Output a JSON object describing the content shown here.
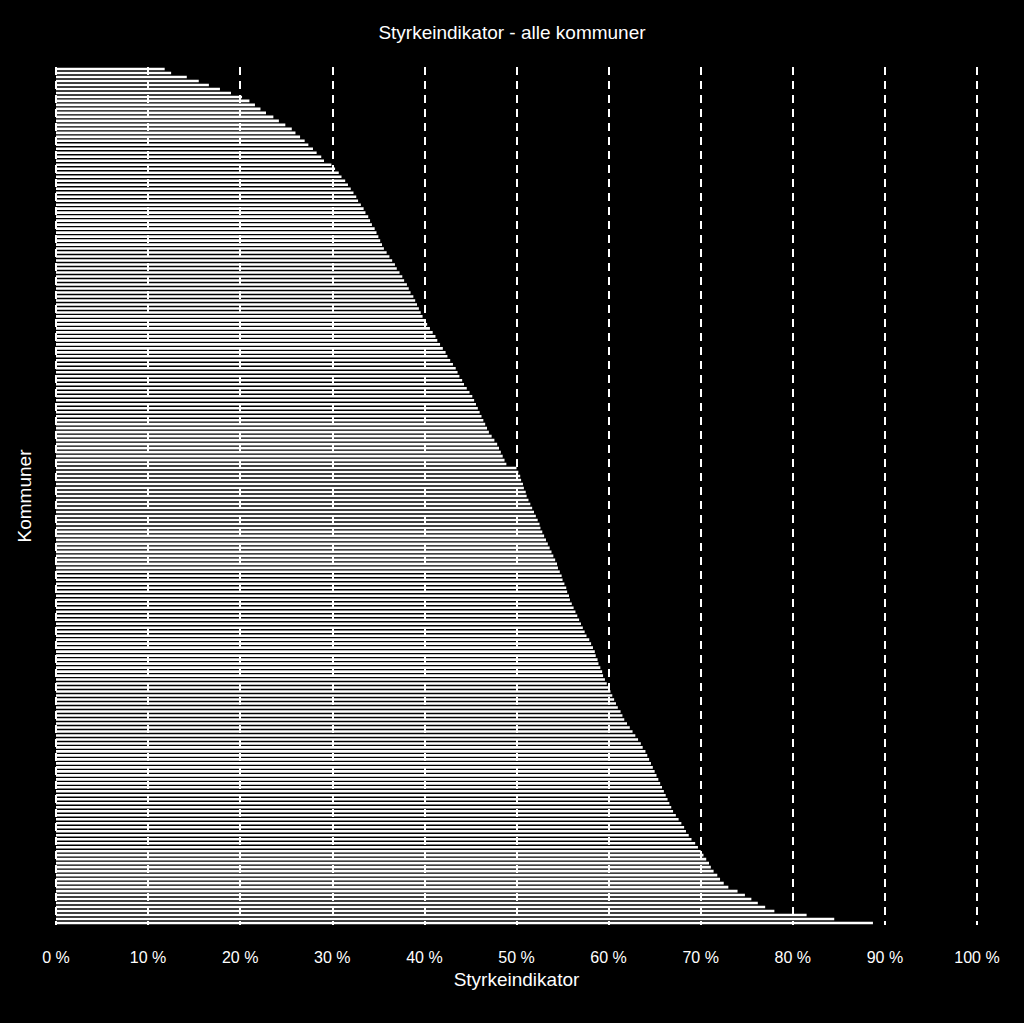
{
  "chart_data": {
    "type": "bar",
    "title": "Styrkeindikator - alle kommuner",
    "x_label": "Styrkeindikator",
    "y_label": "Kommuner",
    "orientation": "horizontal",
    "color": "#ffffff",
    "grid": true,
    "tick_labels": "x",
    "xlim": [
      0,
      100
    ],
    "xticks": [
      {
        "value": 0,
        "label": "0 %"
      },
      {
        "value": 10,
        "label": "10 %"
      },
      {
        "value": 20,
        "label": "20 %"
      },
      {
        "value": 30,
        "label": "30 %"
      },
      {
        "value": 40,
        "label": "40 %"
      },
      {
        "value": 50,
        "label": "50 %"
      },
      {
        "value": 60,
        "label": "60 %"
      },
      {
        "value": 70,
        "label": "70 %"
      },
      {
        "value": 80,
        "label": "80 %"
      },
      {
        "value": 90,
        "label": "90 %"
      },
      {
        "value": 100,
        "label": "100 %"
      }
    ],
    "categories": [
      null,
      null,
      null,
      null,
      null,
      null,
      null,
      null,
      null,
      null,
      null,
      null,
      null,
      null,
      null,
      null,
      null,
      null,
      null,
      null,
      null,
      null,
      null,
      null,
      null,
      null,
      null,
      null,
      null,
      null,
      null,
      null,
      null,
      null,
      null,
      null,
      null,
      null,
      null,
      null,
      null,
      null,
      null,
      null,
      null,
      null,
      null,
      null,
      null,
      null,
      null,
      null,
      null,
      null,
      null,
      null,
      null,
      null,
      null,
      null,
      null,
      null,
      null,
      null,
      null,
      null,
      null,
      null,
      null,
      null,
      null,
      null,
      null,
      null,
      null,
      null,
      null,
      null,
      null,
      null,
      null,
      null,
      null,
      null,
      null,
      null,
      null,
      null,
      null,
      null,
      null,
      null,
      null,
      null,
      null,
      null,
      null,
      null,
      null,
      null,
      null,
      null,
      null,
      null,
      null,
      null,
      null,
      null,
      null,
      null,
      null,
      null,
      null,
      null,
      null,
      null,
      null,
      null,
      null,
      null,
      null,
      null,
      null,
      null,
      null,
      null,
      null,
      null,
      null,
      null,
      null,
      null,
      null,
      null,
      null,
      null,
      null,
      null,
      null,
      null,
      null,
      null,
      null,
      null,
      null,
      null,
      null,
      null,
      null,
      null,
      null,
      null,
      null,
      null,
      null,
      null,
      null,
      null,
      null,
      null,
      null,
      null,
      null,
      null,
      null,
      null,
      null,
      null,
      null,
      null,
      null,
      null,
      null,
      null,
      null,
      null,
      null,
      null,
      null,
      null,
      null,
      null,
      null,
      null,
      null,
      null,
      null,
      null,
      null,
      null,
      null,
      null,
      null,
      null,
      null,
      null,
      null,
      null,
      null,
      null,
      null,
      null,
      null,
      null,
      null,
      null,
      null,
      null,
      null,
      null,
      null,
      null,
      null,
      null,
      null
    ],
    "values": [
      11.8,
      12.5,
      14.2,
      15.5,
      16.6,
      17.8,
      19.0,
      20.2,
      21.0,
      21.6,
      22.2,
      22.8,
      23.6,
      24.2,
      24.9,
      25.6,
      26.0,
      26.5,
      27.0,
      27.4,
      27.9,
      28.3,
      28.8,
      29.1,
      29.9,
      30.3,
      30.7,
      31.0,
      31.4,
      31.7,
      32.0,
      32.3,
      32.6,
      32.8,
      33.1,
      33.4,
      33.6,
      33.9,
      34.1,
      34.3,
      34.6,
      34.8,
      35.0,
      35.2,
      35.4,
      35.6,
      35.9,
      36.2,
      36.5,
      36.8,
      37.0,
      37.3,
      37.6,
      37.8,
      38.1,
      38.3,
      38.5,
      38.8,
      39.0,
      39.2,
      39.4,
      39.6,
      39.8,
      40.0,
      40.3,
      40.6,
      40.9,
      41.2,
      41.4,
      41.7,
      42.0,
      42.3,
      42.5,
      42.8,
      43.1,
      43.4,
      43.6,
      43.8,
      44.1,
      44.3,
      44.6,
      44.9,
      45.2,
      45.4,
      45.6,
      45.8,
      46.0,
      46.2,
      46.4,
      46.6,
      46.8,
      47.0,
      47.3,
      47.6,
      47.9,
      48.1,
      48.3,
      48.5,
      48.7,
      48.9,
      50.0,
      50.2,
      50.4,
      50.5,
      50.7,
      50.8,
      51.0,
      51.1,
      51.3,
      51.5,
      51.7,
      51.9,
      52.1,
      52.3,
      52.5,
      52.6,
      52.8,
      53.0,
      53.2,
      53.4,
      53.6,
      53.8,
      54.0,
      54.2,
      54.4,
      54.5,
      54.7,
      54.9,
      55.0,
      55.2,
      55.4,
      55.5,
      55.7,
      55.8,
      56.0,
      56.2,
      56.4,
      56.6,
      56.8,
      57.0,
      57.2,
      57.4,
      57.6,
      57.9,
      58.1,
      58.3,
      58.5,
      58.6,
      58.8,
      58.9,
      59.1,
      59.3,
      59.4,
      59.6,
      59.8,
      60.0,
      60.2,
      60.4,
      60.6,
      60.8,
      61.0,
      61.3,
      61.5,
      61.7,
      62.0,
      62.3,
      62.6,
      62.9,
      63.2,
      63.5,
      63.7,
      64.0,
      64.2,
      64.4,
      64.6,
      64.8,
      65.0,
      65.2,
      65.4,
      65.6,
      65.8,
      66.0,
      66.2,
      66.4,
      66.6,
      66.8,
      67.0,
      67.3,
      67.6,
      67.9,
      68.2,
      68.4,
      68.7,
      69.0,
      69.4,
      69.7,
      70.0,
      70.3,
      70.6,
      70.9,
      71.1,
      71.4,
      71.8,
      72.1,
      72.5,
      73.0,
      74.0,
      74.8,
      75.5,
      76.2,
      77.0,
      78.0,
      81.5,
      84.5,
      88.7
    ]
  }
}
